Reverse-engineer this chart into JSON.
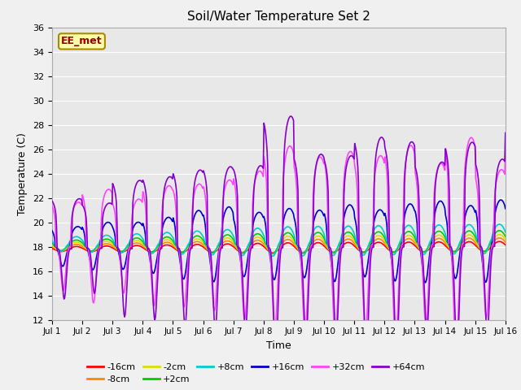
{
  "title": "Soil/Water Temperature Set 2",
  "xlabel": "Time",
  "ylabel": "Temperature (C)",
  "ylim": [
    12,
    36
  ],
  "yticks": [
    12,
    14,
    16,
    18,
    20,
    22,
    24,
    26,
    28,
    30,
    32,
    34,
    36
  ],
  "xlim": [
    0,
    15
  ],
  "xtick_labels": [
    "Jul 1",
    "Jul 2",
    "Jul 3",
    "Jul 4",
    "Jul 5",
    "Jul 6",
    "Jul 7",
    "Jul 8",
    "Jul 9",
    "Jul 10",
    "Jul 11",
    "Jul 12",
    "Jul 13",
    "Jul 14",
    "Jul 15",
    "Jul 16"
  ],
  "annotation": "EE_met",
  "fig_facecolor": "#f0f0f0",
  "ax_facecolor": "#e8e8e8",
  "series": {
    "-16cm": {
      "color": "#ff0000",
      "linewidth": 1.2,
      "zorder": 3
    },
    "-8cm": {
      "color": "#ff8800",
      "linewidth": 1.2,
      "zorder": 3
    },
    "-2cm": {
      "color": "#dddd00",
      "linewidth": 1.2,
      "zorder": 3
    },
    "+2cm": {
      "color": "#00cc00",
      "linewidth": 1.2,
      "zorder": 3
    },
    "+8cm": {
      "color": "#00cccc",
      "linewidth": 1.2,
      "zorder": 3
    },
    "+16cm": {
      "color": "#0000cc",
      "linewidth": 1.2,
      "zorder": 4
    },
    "+32cm": {
      "color": "#ff44ff",
      "linewidth": 1.2,
      "zorder": 5
    },
    "+64cm": {
      "color": "#8800cc",
      "linewidth": 1.2,
      "zorder": 5
    }
  },
  "legend_order": [
    "-16cm",
    "-8cm",
    "-2cm",
    "+2cm",
    "+8cm",
    "+16cm",
    "+32cm",
    "+64cm"
  ]
}
